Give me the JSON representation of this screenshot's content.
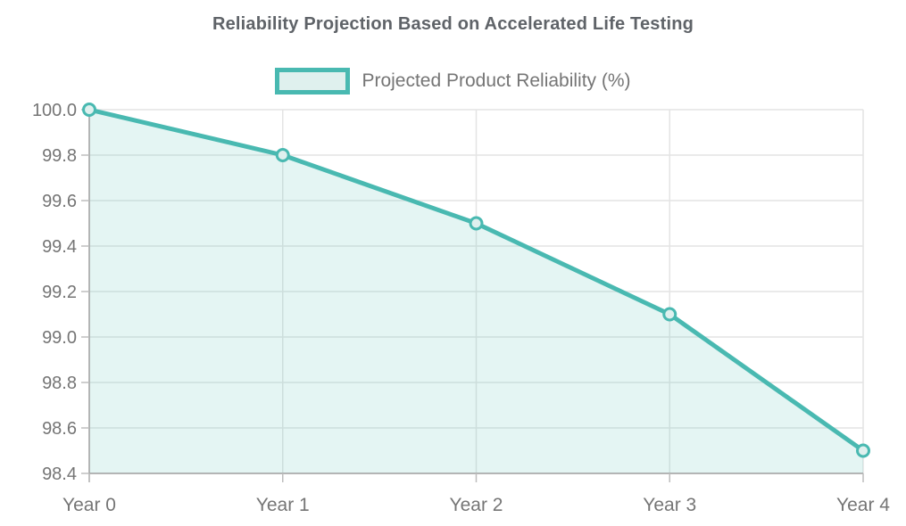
{
  "chart_data": {
    "type": "area",
    "title": "Reliability Projection Based on Accelerated Life Testing",
    "categories": [
      "Year 0",
      "Year 1",
      "Year 2",
      "Year 3",
      "Year 4"
    ],
    "series": [
      {
        "name": "Projected Product Reliability (%)",
        "values": [
          100.0,
          99.8,
          99.5,
          99.1,
          98.5
        ]
      }
    ],
    "xlabel": "",
    "ylabel": "",
    "ylim": [
      98.4,
      100.0
    ],
    "ytick_step": 0.2,
    "ytick_labels": [
      "98.4",
      "98.6",
      "98.8",
      "99.0",
      "99.2",
      "99.4",
      "99.6",
      "99.8",
      "100.0"
    ],
    "grid": true,
    "legend_position": "top",
    "legend_marker": "bordered-box-swatch",
    "colors": {
      "line": "#49b9b1",
      "area_fill": "rgba(73,185,177,0.15)",
      "marker_fill": "#dff0ee",
      "grid_line": "#e4e4e4",
      "axis_line": "#a3a3a3",
      "tick_line": "#bdbdbd",
      "title_text": "#5f6368",
      "label_text": "#757575",
      "background": "#ffffff"
    }
  }
}
